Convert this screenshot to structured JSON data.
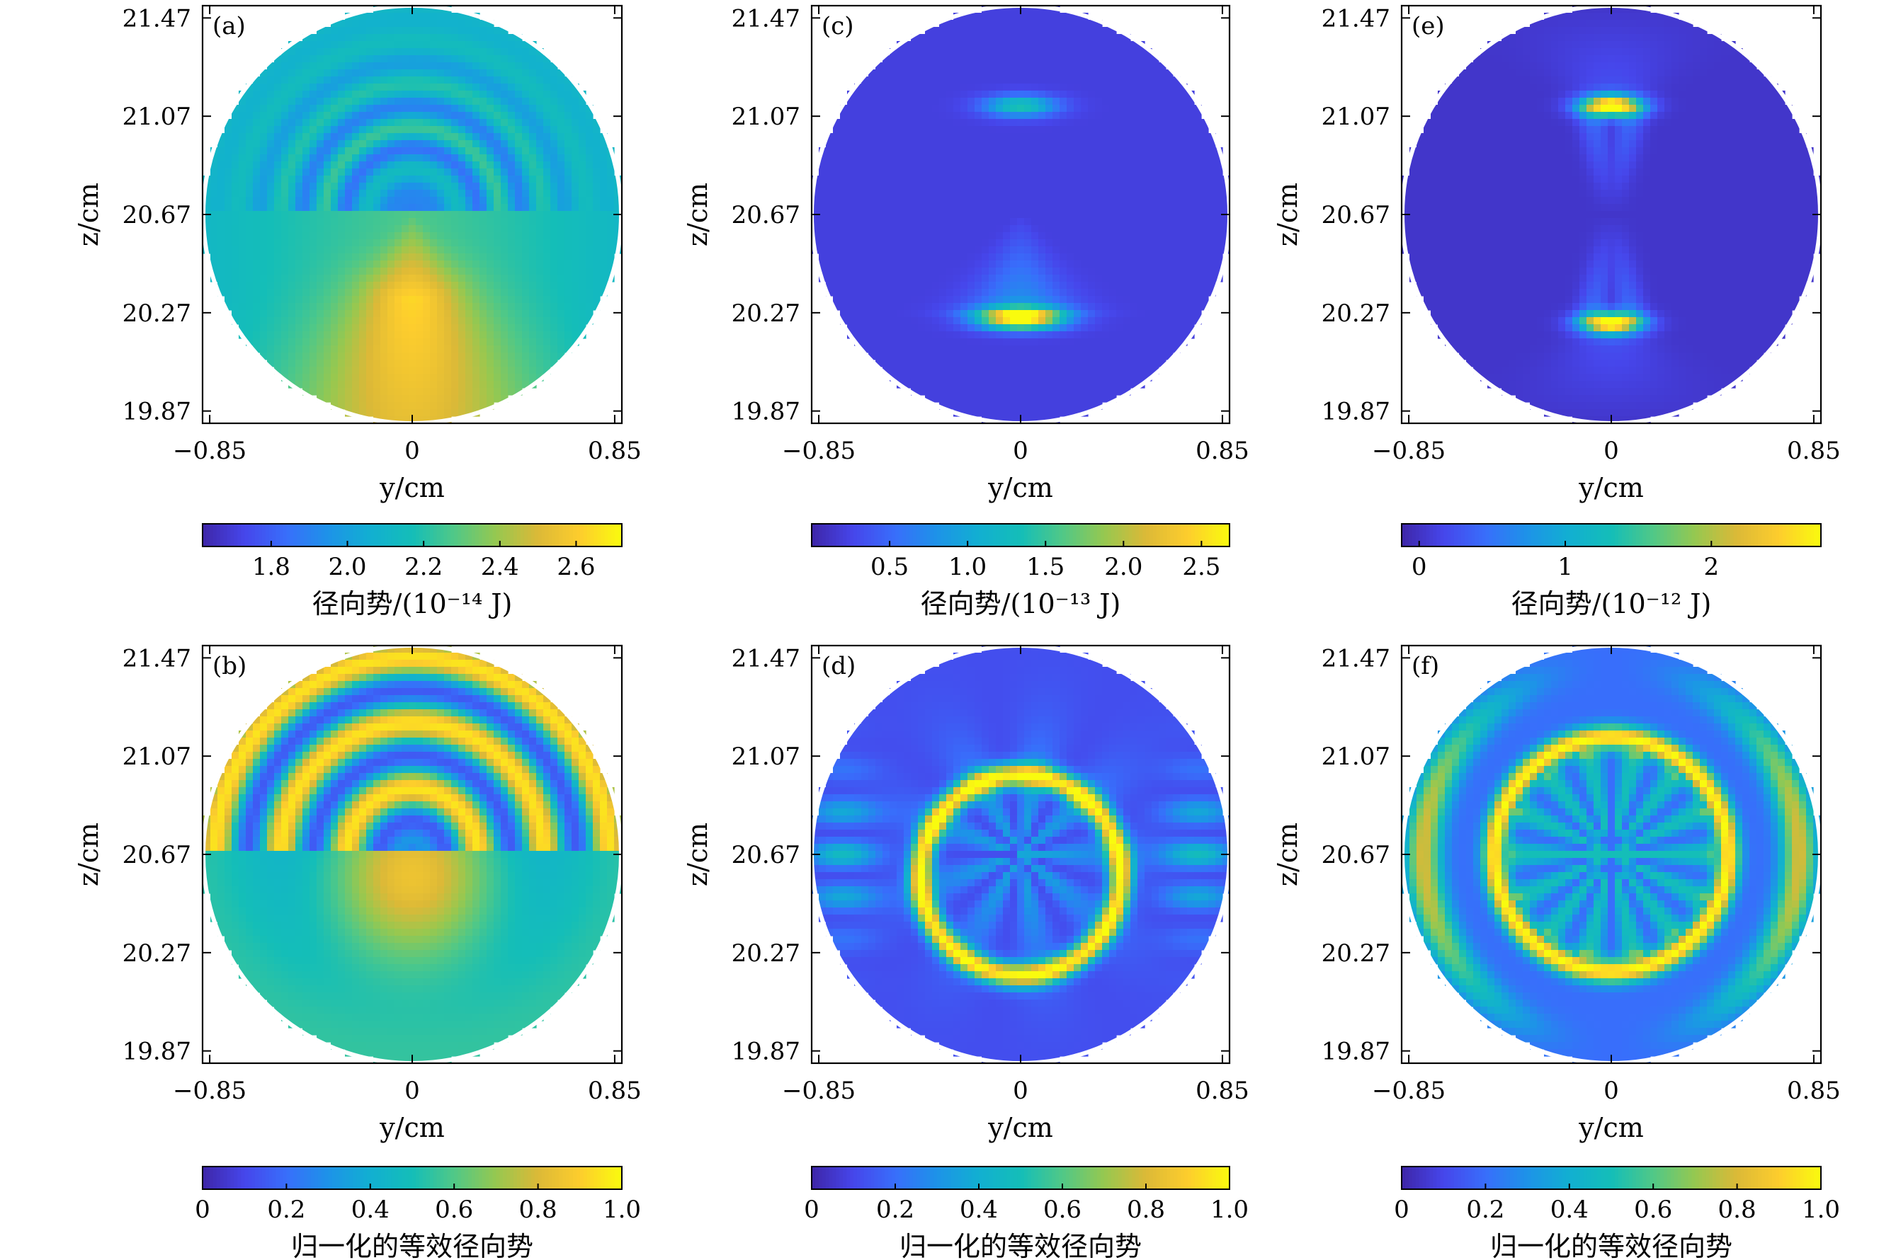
{
  "chart_data": [
    {
      "type": "heatmap",
      "panel_label": "(a)",
      "xlabel": "y/cm",
      "ylabel": "z/cm",
      "xticks": [
        "−0.85",
        "0",
        "0.85"
      ],
      "yticks": [
        "21.47",
        "21.07",
        "20.67",
        "20.27",
        "19.87"
      ],
      "xlim": [
        -0.85,
        0.85
      ],
      "ylim": [
        19.82,
        21.52
      ],
      "pattern": "radial-upper-rings",
      "colorbar": {
        "label": "径向势/(10⁻¹⁴ J)",
        "ticks": [
          "1.8",
          "2.0",
          "2.2",
          "2.4",
          "2.6"
        ],
        "tick_values": [
          1.8,
          2.0,
          2.2,
          2.4,
          2.6
        ],
        "range": [
          1.62,
          2.72
        ]
      }
    },
    {
      "type": "heatmap",
      "panel_label": "(c)",
      "xlabel": "y/cm",
      "ylabel": "z/cm",
      "xticks": [
        "−0.85",
        "0",
        "0.85"
      ],
      "yticks": [
        "21.47",
        "21.07",
        "20.67",
        "20.27",
        "19.87"
      ],
      "xlim": [
        -0.85,
        0.85
      ],
      "ylim": [
        19.82,
        21.52
      ],
      "pattern": "two-spots-lower-strong",
      "colorbar": {
        "label": "径向势/(10⁻¹³ J)",
        "ticks": [
          "0.5",
          "1.0",
          "1.5",
          "2.0",
          "2.5"
        ],
        "tick_values": [
          0.5,
          1.0,
          1.5,
          2.0,
          2.5
        ],
        "range": [
          0.0,
          2.68
        ]
      }
    },
    {
      "type": "heatmap",
      "panel_label": "(e)",
      "xlabel": "y/cm",
      "ylabel": "z/cm",
      "xticks": [
        "−0.85",
        "0",
        "0.85"
      ],
      "yticks": [
        "21.47",
        "21.07",
        "20.67",
        "20.27",
        "19.87"
      ],
      "xlim": [
        -0.85,
        0.85
      ],
      "ylim": [
        19.82,
        21.52
      ],
      "pattern": "two-spots-symmetric",
      "colorbar": {
        "label": "径向势/(10⁻¹² J)",
        "ticks": [
          "0",
          "1",
          "2"
        ],
        "tick_values": [
          0,
          1,
          2
        ],
        "range": [
          -0.12,
          2.75
        ]
      }
    },
    {
      "type": "heatmap",
      "panel_label": "(b)",
      "xlabel": "y/cm",
      "ylabel": "z/cm",
      "xticks": [
        "−0.85",
        "0",
        "0.85"
      ],
      "yticks": [
        "21.47",
        "21.07",
        "20.67",
        "20.27",
        "19.87"
      ],
      "xlim": [
        -0.85,
        0.85
      ],
      "ylim": [
        19.82,
        21.52
      ],
      "pattern": "normalized-upper-rings",
      "colorbar": {
        "label": "归一化的等效径向势",
        "ticks": [
          "0",
          "0.2",
          "0.4",
          "0.6",
          "0.8",
          "1.0"
        ],
        "tick_values": [
          0,
          0.2,
          0.4,
          0.6,
          0.8,
          1.0
        ],
        "range": [
          0,
          1
        ]
      }
    },
    {
      "type": "heatmap",
      "panel_label": "(d)",
      "xlabel": "y/cm",
      "ylabel": "z/cm",
      "xticks": [
        "−0.85",
        "0",
        "0.85"
      ],
      "yticks": [
        "21.47",
        "21.07",
        "20.67",
        "20.27",
        "19.87"
      ],
      "xlim": [
        -0.85,
        0.85
      ],
      "ylim": [
        19.82,
        21.52
      ],
      "pattern": "normalized-shifted-ring",
      "colorbar": {
        "label": "归一化的等效径向势",
        "ticks": [
          "0",
          "0.2",
          "0.4",
          "0.6",
          "0.8",
          "1.0"
        ],
        "tick_values": [
          0,
          0.2,
          0.4,
          0.6,
          0.8,
          1.0
        ],
        "range": [
          0,
          1
        ]
      }
    },
    {
      "type": "heatmap",
      "panel_label": "(f)",
      "xlabel": "y/cm",
      "ylabel": "z/cm",
      "xticks": [
        "−0.85",
        "0",
        "0.85"
      ],
      "yticks": [
        "21.47",
        "21.07",
        "20.67",
        "20.27",
        "19.87"
      ],
      "xlim": [
        -0.85,
        0.85
      ],
      "ylim": [
        19.82,
        21.52
      ],
      "pattern": "normalized-centered-ring",
      "colorbar": {
        "label": "归一化的等效径向势",
        "ticks": [
          "0",
          "0.2",
          "0.4",
          "0.6",
          "0.8",
          "1.0"
        ],
        "tick_values": [
          0,
          0.2,
          0.4,
          0.6,
          0.8,
          1.0
        ],
        "range": [
          0,
          1
        ]
      }
    }
  ],
  "colormap": "parula",
  "colors": {
    "low": "#3e26a8",
    "mid": "#14beb8",
    "high": "#f9fb0e"
  }
}
